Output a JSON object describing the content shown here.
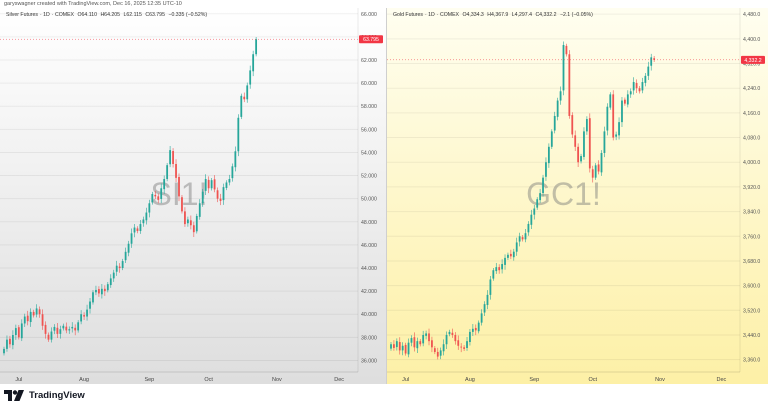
{
  "credit": "garyswagner created with TradingView.com, Dec 16, 2025 12:35 UTC-10",
  "brand": "TradingView",
  "chart_data": [
    {
      "type": "candlestick",
      "header": {
        "name": "Silver Futures",
        "interval": "1D",
        "exchange": "COMEX",
        "open": "O64.110",
        "high": "H64.205",
        "low": "L62.115",
        "close": "C63.795",
        "change": "−0.335 (−0.52%)"
      },
      "watermark": "SI1!",
      "last_price": "63.795",
      "ylim": [
        35,
        66.5
      ],
      "y_ticks": [
        "36.000",
        "38.000",
        "40.000",
        "42.000",
        "44.000",
        "46.000",
        "48.000",
        "50.000",
        "52.000",
        "54.000",
        "56.000",
        "58.000",
        "60.000",
        "62.000",
        "64.000",
        "66.000"
      ],
      "x_ticks": [
        "Jul",
        "Aug",
        "Sep",
        "Oct",
        "Nov",
        "Dec"
      ],
      "x_tick_index": [
        5,
        27,
        49,
        69,
        92,
        113
      ],
      "closes": [
        37.0,
        37.8,
        37.4,
        38.2,
        38.8,
        38.0,
        39.2,
        39.8,
        39.4,
        40.2,
        39.9,
        40.5,
        40.0,
        39.0,
        38.3,
        37.8,
        38.5,
        38.9,
        38.3,
        38.7,
        39.0,
        38.6,
        38.7,
        38.9,
        38.6,
        39.3,
        40.0,
        39.8,
        40.4,
        41.1,
        41.9,
        42.1,
        41.8,
        42.2,
        42.0,
        42.6,
        43.1,
        43.6,
        44.2,
        44.0,
        44.6,
        45.4,
        46.1,
        47.0,
        47.5,
        47.2,
        47.8,
        48.2,
        48.8,
        49.6,
        50.4,
        50.2,
        49.9,
        50.9,
        51.7,
        52.9,
        54.2,
        53.0,
        51.8,
        50.2,
        48.9,
        47.8,
        48.2,
        47.7,
        47.1,
        48.5,
        49.6,
        50.6,
        51.7,
        50.9,
        51.6,
        50.8,
        50.0,
        49.8,
        51.0,
        51.4,
        51.7,
        52.8,
        54.1,
        57.0,
        58.9,
        58.6,
        59.8,
        61.1,
        62.5,
        63.8
      ],
      "colors": {
        "up": "#26a69a",
        "down": "#ef5350",
        "last": "#f23645"
      }
    },
    {
      "type": "candlestick",
      "header": {
        "name": "Gold Futures",
        "interval": "1D",
        "exchange": "COMEX",
        "open": "O4,334.3",
        "high": "H4,367.9",
        "low": "L4,297.4",
        "close": "C4,332.2",
        "change": "−2.1 (−0.05%)"
      },
      "watermark": "GC1!",
      "last_price": "4,332.2",
      "ylim": [
        3320,
        4500
      ],
      "y_ticks": [
        "3,360.0",
        "3,440.0",
        "3,520.0",
        "3,600.0",
        "3,680.0",
        "3,760.0",
        "3,840.0",
        "3,920.0",
        "4,000.0",
        "4,080.0",
        "4,160.0",
        "4,240.0",
        "4,320.0",
        "4,400.0",
        "4,480.0"
      ],
      "x_ticks": [
        "Jul",
        "Aug",
        "Sep",
        "Oct",
        "Nov",
        "Dec"
      ],
      "x_tick_index": [
        5,
        27,
        49,
        69,
        92,
        113
      ],
      "closes": [
        3410,
        3398,
        3420,
        3390,
        3405,
        3380,
        3415,
        3430,
        3400,
        3420,
        3410,
        3440,
        3445,
        3420,
        3400,
        3385,
        3370,
        3390,
        3410,
        3440,
        3450,
        3440,
        3420,
        3405,
        3400,
        3395,
        3420,
        3450,
        3460,
        3455,
        3480,
        3510,
        3540,
        3570,
        3620,
        3650,
        3660,
        3650,
        3670,
        3690,
        3700,
        3695,
        3710,
        3740,
        3760,
        3750,
        3770,
        3800,
        3830,
        3850,
        3880,
        3900,
        3950,
        4000,
        4050,
        4100,
        4150,
        4200,
        4230,
        4380,
        4350,
        4150,
        4090,
        4050,
        4000,
        4020,
        4100,
        4140,
        3980,
        3950,
        3990,
        3970,
        4030,
        4100,
        4180,
        4220,
        4080,
        4090,
        4130,
        4200,
        4190,
        4220,
        4230,
        4260,
        4240,
        4230,
        4260,
        4280,
        4310,
        4340,
        4332
      ],
      "colors": {
        "up": "#26a69a",
        "down": "#ef5350",
        "last": "#f23645"
      }
    }
  ]
}
